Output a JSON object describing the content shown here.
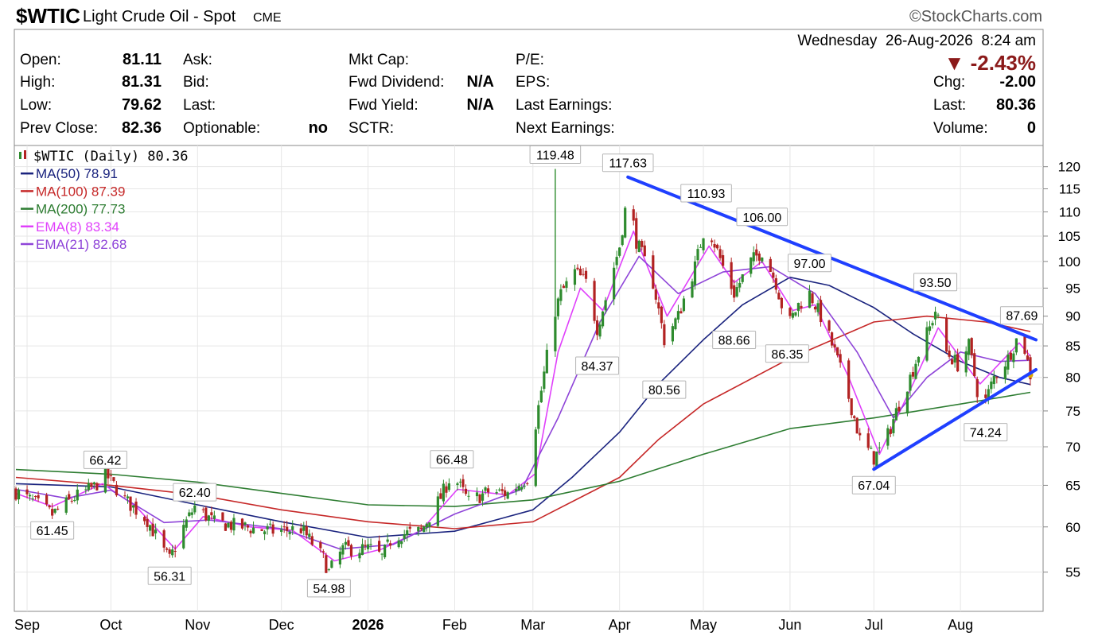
{
  "header": {
    "symbol": "$WTIC",
    "name": "Light Crude Oil - Spot",
    "exchange": "CME",
    "credit": "©StockCharts.com",
    "datetime": "Wednesday  26-Aug-2026  8:24 am",
    "change_pct": "▼ -2.43%",
    "quote_left": [
      {
        "label": "Open:",
        "value": "81.11"
      },
      {
        "label": "High:",
        "value": "81.31"
      },
      {
        "label": "Low:",
        "value": "79.62"
      },
      {
        "label": "Prev Close:",
        "value": "82.36"
      }
    ],
    "quote_mid1": [
      {
        "label": "Ask:",
        "value": ""
      },
      {
        "label": "Bid:",
        "value": ""
      },
      {
        "label": "Last:",
        "value": ""
      },
      {
        "label": "Optionable:",
        "value": "no"
      }
    ],
    "quote_mid2": [
      {
        "label": "Mkt Cap:",
        "value": ""
      },
      {
        "label": "Fwd Dividend:",
        "value": "N/A"
      },
      {
        "label": "Fwd Yield:",
        "value": "N/A"
      },
      {
        "label": "SCTR:",
        "value": ""
      }
    ],
    "quote_mid3": [
      {
        "label": "P/E:"
      },
      {
        "label": "EPS:"
      },
      {
        "label": "Last Earnings:"
      },
      {
        "label": "Next Earnings:"
      }
    ],
    "quote_right": [
      {
        "label": "Chg:",
        "value": "-2.00"
      },
      {
        "label": "Last:",
        "value": "80.36"
      },
      {
        "label": "Volume:",
        "value": "0"
      }
    ]
  },
  "colors": {
    "up_candle": "#2e8b2e",
    "down_candle": "#b22222",
    "ma50": "#1a237e",
    "ma100": "#c62828",
    "ma200": "#2e7d32",
    "ema8": "#e040fb",
    "ema21": "#8e44d8",
    "trendline": "#1f3fff",
    "change_down": "#8b1a1a"
  },
  "chart_data": {
    "type": "candlestick",
    "title": "$WTIC (Daily) 80.36",
    "scale": "log",
    "ylim": [
      51,
      125
    ],
    "y_ticks": [
      55,
      60,
      65,
      70,
      75,
      80,
      85,
      90,
      95,
      100,
      105,
      110,
      115,
      120
    ],
    "x_ticks": [
      "Sep",
      "Oct",
      "Nov",
      "Dec",
      "2026",
      "Feb",
      "Mar",
      "Apr",
      "May",
      "Jun",
      "Jul",
      "Aug"
    ],
    "legend": [
      {
        "name": "$WTIC (Daily) 80.36",
        "color_key": "price"
      },
      {
        "name": "MA(50) 78.91",
        "color_key": "ma50"
      },
      {
        "name": "MA(100) 87.39",
        "color_key": "ma100"
      },
      {
        "name": "MA(200) 77.73",
        "color_key": "ma200"
      },
      {
        "name": "EMA(8) 83.34",
        "color_key": "ema8"
      },
      {
        "name": "EMA(21) 82.68",
        "color_key": "ema21"
      }
    ],
    "price_path": [
      [
        "2025-08-28",
        64.2
      ],
      [
        "2025-09-05",
        62.6
      ],
      [
        "2025-09-10",
        61.45
      ],
      [
        "2025-09-18",
        63.5
      ],
      [
        "2025-09-25",
        64.8
      ],
      [
        "2025-09-29",
        66.42
      ],
      [
        "2025-10-06",
        63.2
      ],
      [
        "2025-10-14",
        60.8
      ],
      [
        "2025-10-20",
        57.2
      ],
      [
        "2025-10-22",
        56.31
      ],
      [
        "2025-10-27",
        60.0
      ],
      [
        "2025-10-31",
        62.4
      ],
      [
        "2025-11-07",
        60.5
      ],
      [
        "2025-11-17",
        60.0
      ],
      [
        "2025-11-28",
        59.5
      ],
      [
        "2025-12-08",
        59.8
      ],
      [
        "2025-12-16",
        56.5
      ],
      [
        "2025-12-18",
        54.98
      ],
      [
        "2025-12-23",
        57.5
      ],
      [
        "2026-01-02",
        57.5
      ],
      [
        "2026-01-06",
        56.6
      ],
      [
        "2026-01-10",
        59.0
      ],
      [
        "2026-01-20",
        59.5
      ],
      [
        "2026-01-27",
        63.5
      ],
      [
        "2026-01-31",
        66.48
      ],
      [
        "2026-02-06",
        63.0
      ],
      [
        "2026-02-13",
        64.2
      ],
      [
        "2026-02-20",
        64.0
      ],
      [
        "2026-02-27",
        66.0
      ],
      [
        "2026-03-04",
        78.0
      ],
      [
        "2026-03-09",
        91.0
      ],
      [
        "2026-03-11",
        94.0
      ],
      [
        "2026-03-16",
        98.0
      ],
      [
        "2026-03-20",
        96.0
      ],
      [
        "2026-03-24",
        88.0
      ],
      [
        "2026-03-27",
        93.0
      ],
      [
        "2026-04-01",
        103.0
      ],
      [
        "2026-04-04",
        114.0
      ],
      [
        "2026-04-07",
        104.0
      ],
      [
        "2026-04-13",
        96.0
      ],
      [
        "2026-04-17",
        86.0
      ],
      [
        "2026-04-22",
        90.0
      ],
      [
        "2026-04-28",
        99.0
      ],
      [
        "2026-05-02",
        108.0
      ],
      [
        "2026-05-08",
        99.0
      ],
      [
        "2026-05-12",
        94.0
      ],
      [
        "2026-05-18",
        100.0
      ],
      [
        "2026-05-22",
        102.0
      ],
      [
        "2026-05-27",
        96.0
      ],
      [
        "2026-05-31",
        88.0
      ],
      [
        "2026-06-04",
        92.0
      ],
      [
        "2026-06-08",
        94.0
      ],
      [
        "2026-06-12",
        90.0
      ],
      [
        "2026-06-17",
        84.0
      ],
      [
        "2026-06-22",
        77.0
      ],
      [
        "2026-06-26",
        71.0
      ],
      [
        "2026-07-01",
        68.5
      ],
      [
        "2026-07-05",
        70.5
      ],
      [
        "2026-07-10",
        76.0
      ],
      [
        "2026-07-14",
        80.0
      ],
      [
        "2026-07-18",
        85.0
      ],
      [
        "2026-07-21",
        88.0
      ],
      [
        "2026-07-23",
        91.0
      ],
      [
        "2026-07-27",
        84.0
      ],
      [
        "2026-07-31",
        82.0
      ],
      [
        "2026-08-04",
        85.0
      ],
      [
        "2026-08-07",
        78.0
      ],
      [
        "2026-08-10",
        76.5
      ],
      [
        "2026-08-13",
        80.0
      ],
      [
        "2026-08-18",
        83.0
      ],
      [
        "2026-08-21",
        86.0
      ],
      [
        "2026-08-23",
        86.5
      ],
      [
        "2026-08-26",
        80.36
      ]
    ],
    "series": [
      {
        "name": "MA(50)",
        "color_key": "ma50",
        "points": [
          [
            "2025-08-28",
            65.2
          ],
          [
            "2025-10-01",
            64.8
          ],
          [
            "2025-11-01",
            62.6
          ],
          [
            "2025-12-01",
            60.6
          ],
          [
            "2026-01-01",
            58.8
          ],
          [
            "2026-02-01",
            59.5
          ],
          [
            "2026-03-01",
            62.0
          ],
          [
            "2026-03-15",
            66.0
          ],
          [
            "2026-04-01",
            72.0
          ],
          [
            "2026-04-15",
            79.0
          ],
          [
            "2026-05-01",
            86.0
          ],
          [
            "2026-05-15",
            92.0
          ],
          [
            "2026-06-01",
            97.0
          ],
          [
            "2026-06-15",
            95.5
          ],
          [
            "2026-07-01",
            91.5
          ],
          [
            "2026-07-15",
            87.0
          ],
          [
            "2026-08-01",
            82.5
          ],
          [
            "2026-08-15",
            80.0
          ],
          [
            "2026-08-26",
            78.91
          ]
        ]
      },
      {
        "name": "MA(100)",
        "color_key": "ma100",
        "points": [
          [
            "2025-08-28",
            66.0
          ],
          [
            "2025-10-01",
            65.0
          ],
          [
            "2025-11-01",
            63.8
          ],
          [
            "2025-12-01",
            62.0
          ],
          [
            "2026-01-01",
            60.6
          ],
          [
            "2026-02-01",
            59.8
          ],
          [
            "2026-03-01",
            60.6
          ],
          [
            "2026-04-01",
            66.0
          ],
          [
            "2026-04-15",
            71.0
          ],
          [
            "2026-05-01",
            76.0
          ],
          [
            "2026-06-01",
            83.0
          ],
          [
            "2026-07-01",
            89.0
          ],
          [
            "2026-07-20",
            90.0
          ],
          [
            "2026-08-10",
            89.0
          ],
          [
            "2026-08-26",
            87.39
          ]
        ]
      },
      {
        "name": "MA(200)",
        "color_key": "ma200",
        "points": [
          [
            "2025-08-28",
            67.0
          ],
          [
            "2025-10-01",
            66.4
          ],
          [
            "2025-11-01",
            65.4
          ],
          [
            "2025-12-01",
            64.0
          ],
          [
            "2026-01-01",
            62.6
          ],
          [
            "2026-02-01",
            62.4
          ],
          [
            "2026-03-01",
            63.2
          ],
          [
            "2026-04-01",
            65.5
          ],
          [
            "2026-05-01",
            69.0
          ],
          [
            "2026-06-01",
            72.5
          ],
          [
            "2026-07-01",
            74.0
          ],
          [
            "2026-08-01",
            76.0
          ],
          [
            "2026-08-26",
            77.73
          ]
        ]
      },
      {
        "name": "EMA(8)",
        "color_key": "ema8",
        "points": [
          [
            "2025-08-28",
            64.0
          ],
          [
            "2025-09-10",
            62.4
          ],
          [
            "2025-09-28",
            65.2
          ],
          [
            "2025-10-10",
            62.4
          ],
          [
            "2025-10-24",
            57.5
          ],
          [
            "2025-11-03",
            61.2
          ],
          [
            "2025-11-20",
            60.0
          ],
          [
            "2025-12-05",
            59.6
          ],
          [
            "2025-12-20",
            56.2
          ],
          [
            "2026-01-06",
            57.5
          ],
          [
            "2026-01-20",
            59.6
          ],
          [
            "2026-02-02",
            64.5
          ],
          [
            "2026-02-20",
            63.8
          ],
          [
            "2026-03-02",
            66.5
          ],
          [
            "2026-03-10",
            84.0
          ],
          [
            "2026-03-18",
            95.0
          ],
          [
            "2026-03-26",
            91.0
          ],
          [
            "2026-04-06",
            106.0
          ],
          [
            "2026-04-18",
            90.0
          ],
          [
            "2026-05-03",
            103.0
          ],
          [
            "2026-05-12",
            96.0
          ],
          [
            "2026-05-22",
            100.0
          ],
          [
            "2026-06-02",
            91.0
          ],
          [
            "2026-06-10",
            92.0
          ],
          [
            "2026-06-22",
            80.0
          ],
          [
            "2026-07-03",
            69.0
          ],
          [
            "2026-07-15",
            79.0
          ],
          [
            "2026-07-24",
            88.0
          ],
          [
            "2026-08-08",
            79.0
          ],
          [
            "2026-08-22",
            85.5
          ],
          [
            "2026-08-26",
            83.34
          ]
        ]
      },
      {
        "name": "EMA(21)",
        "color_key": "ema21",
        "points": [
          [
            "2025-08-28",
            64.5
          ],
          [
            "2025-09-15",
            63.4
          ],
          [
            "2025-10-01",
            64.4
          ],
          [
            "2025-10-20",
            60.5
          ],
          [
            "2025-11-05",
            60.8
          ],
          [
            "2025-12-01",
            59.8
          ],
          [
            "2025-12-22",
            57.5
          ],
          [
            "2026-01-10",
            58.0
          ],
          [
            "2026-02-01",
            61.5
          ],
          [
            "2026-02-25",
            64.5
          ],
          [
            "2026-03-10",
            74.0
          ],
          [
            "2026-03-25",
            89.0
          ],
          [
            "2026-04-08",
            101.0
          ],
          [
            "2026-04-22",
            94.0
          ],
          [
            "2026-05-08",
            98.0
          ],
          [
            "2026-05-25",
            99.0
          ],
          [
            "2026-06-10",
            94.0
          ],
          [
            "2026-06-25",
            84.0
          ],
          [
            "2026-07-08",
            74.0
          ],
          [
            "2026-07-20",
            80.0
          ],
          [
            "2026-08-01",
            84.0
          ],
          [
            "2026-08-15",
            82.5
          ],
          [
            "2026-08-26",
            82.68
          ]
        ]
      }
    ],
    "trendlines": [
      {
        "from": [
          "2026-04-04",
          117.63
        ],
        "to": [
          "2026-08-28",
          86.0
        ]
      },
      {
        "from": [
          "2026-07-01",
          67.04
        ],
        "to": [
          "2026-08-28",
          81.2
        ]
      }
    ],
    "annotations": [
      {
        "date": "2025-09-29",
        "value": 66.42,
        "text": "66.42",
        "pos": "above"
      },
      {
        "date": "2025-09-10",
        "value": 61.45,
        "text": "61.45",
        "pos": "below"
      },
      {
        "date": "2025-10-31",
        "value": 62.4,
        "text": "62.40",
        "pos": "above"
      },
      {
        "date": "2025-10-22",
        "value": 56.31,
        "text": "56.31",
        "pos": "below"
      },
      {
        "date": "2025-12-18",
        "value": 54.98,
        "text": "54.98",
        "pos": "below"
      },
      {
        "date": "2026-01-31",
        "value": 66.48,
        "text": "66.48",
        "pos": "above"
      },
      {
        "date": "2026-03-09",
        "value": 119.48,
        "text": "119.48",
        "pos": "above"
      },
      {
        "date": "2026-04-04",
        "value": 117.63,
        "text": "117.63",
        "pos": "above"
      },
      {
        "date": "2026-05-02",
        "value": 110.93,
        "text": "110.93",
        "pos": "above"
      },
      {
        "date": "2026-05-22",
        "value": 106.0,
        "text": "106.00",
        "pos": "above"
      },
      {
        "date": "2026-06-08",
        "value": 97.0,
        "text": "97.00",
        "pos": "above"
      },
      {
        "date": "2026-07-23",
        "value": 93.5,
        "text": "93.50",
        "pos": "above"
      },
      {
        "date": "2026-08-23",
        "value": 87.69,
        "text": "87.69",
        "pos": "above"
      },
      {
        "date": "2026-03-24",
        "value": 84.37,
        "text": "84.37",
        "pos": "below"
      },
      {
        "date": "2026-04-17",
        "value": 80.56,
        "text": "80.56",
        "pos": "below"
      },
      {
        "date": "2026-05-12",
        "value": 88.66,
        "text": "88.66",
        "pos": "below"
      },
      {
        "date": "2026-05-31",
        "value": 86.35,
        "text": "86.35",
        "pos": "below"
      },
      {
        "date": "2026-07-01",
        "value": 67.04,
        "text": "67.04",
        "pos": "below"
      },
      {
        "date": "2026-08-10",
        "value": 74.24,
        "text": "74.24",
        "pos": "below"
      }
    ]
  }
}
